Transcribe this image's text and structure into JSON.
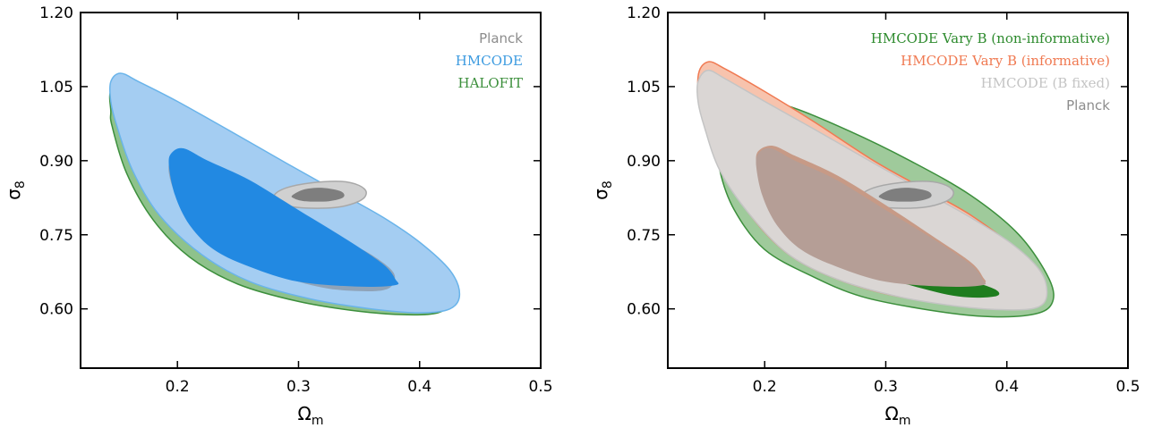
{
  "chart_data": [
    {
      "type": "contour",
      "xlabel": "Ωm",
      "ylabel": "σ8",
      "xlim": [
        0.12,
        0.5
      ],
      "ylim": [
        0.48,
        1.2
      ],
      "xticks": [
        "0.2",
        "0.3",
        "0.4",
        "0.5"
      ],
      "yticks": [
        "1.20",
        "1.05",
        "0.90",
        "0.75",
        "0.60"
      ],
      "legend": {
        "placement": "top-right",
        "entries": [
          {
            "label": "Planck",
            "color": "#8c8c8c"
          },
          {
            "label": "HMCODE",
            "color": "#3d9be0"
          },
          {
            "label": "HALOFIT",
            "color": "#3c8f3c"
          }
        ]
      },
      "series": [
        {
          "name": "HALOFIT",
          "fill": "#8ec28b",
          "stroke": "#3c8f3c",
          "inner": "#8fa3b8",
          "outer": [
            [
              0.145,
              1.04
            ],
            [
              0.157,
              1.045
            ],
            [
              0.185,
              1.02
            ],
            [
              0.22,
              0.975
            ],
            [
              0.26,
              0.92
            ],
            [
              0.3,
              0.865
            ],
            [
              0.34,
              0.8
            ],
            [
              0.38,
              0.74
            ],
            [
              0.41,
              0.685
            ],
            [
              0.427,
              0.645
            ],
            [
              0.426,
              0.612
            ],
            [
              0.415,
              0.592
            ],
            [
              0.39,
              0.588
            ],
            [
              0.35,
              0.595
            ],
            [
              0.3,
              0.615
            ],
            [
              0.25,
              0.65
            ],
            [
              0.21,
              0.705
            ],
            [
              0.18,
              0.78
            ],
            [
              0.158,
              0.875
            ],
            [
              0.146,
              0.97
            ],
            [
              0.145,
              1.0
            ]
          ],
          "inner_path": [
            [
              0.195,
              0.905
            ],
            [
              0.205,
              0.915
            ],
            [
              0.22,
              0.895
            ],
            [
              0.255,
              0.855
            ],
            [
              0.29,
              0.81
            ],
            [
              0.33,
              0.75
            ],
            [
              0.36,
              0.71
            ],
            [
              0.378,
              0.675
            ],
            [
              0.378,
              0.65
            ],
            [
              0.37,
              0.638
            ],
            [
              0.35,
              0.636
            ],
            [
              0.32,
              0.643
            ],
            [
              0.28,
              0.67
            ],
            [
              0.245,
              0.705
            ],
            [
              0.22,
              0.755
            ],
            [
              0.2,
              0.825
            ],
            [
              0.193,
              0.875
            ]
          ]
        },
        {
          "name": "HMCODE",
          "fill": "#a4cdf2",
          "stroke": "#6ab4ea",
          "inner": "#2289e2",
          "outer": [
            [
              0.145,
              1.06
            ],
            [
              0.153,
              1.077
            ],
            [
              0.168,
              1.06
            ],
            [
              0.2,
              1.02
            ],
            [
              0.24,
              0.965
            ],
            [
              0.29,
              0.895
            ],
            [
              0.33,
              0.84
            ],
            [
              0.37,
              0.785
            ],
            [
              0.4,
              0.735
            ],
            [
              0.425,
              0.678
            ],
            [
              0.433,
              0.63
            ],
            [
              0.425,
              0.6
            ],
            [
              0.4,
              0.592
            ],
            [
              0.36,
              0.6
            ],
            [
              0.31,
              0.62
            ],
            [
              0.26,
              0.655
            ],
            [
              0.22,
              0.71
            ],
            [
              0.185,
              0.79
            ],
            [
              0.163,
              0.88
            ],
            [
              0.15,
              0.97
            ],
            [
              0.145,
              1.02
            ]
          ],
          "inner_path": [
            [
              0.195,
              0.915
            ],
            [
              0.205,
              0.925
            ],
            [
              0.225,
              0.9
            ],
            [
              0.26,
              0.86
            ],
            [
              0.3,
              0.8
            ],
            [
              0.34,
              0.74
            ],
            [
              0.37,
              0.69
            ],
            [
              0.38,
              0.66
            ],
            [
              0.38,
              0.648
            ],
            [
              0.35,
              0.645
            ],
            [
              0.3,
              0.655
            ],
            [
              0.26,
              0.685
            ],
            [
              0.23,
              0.72
            ],
            [
              0.21,
              0.77
            ],
            [
              0.198,
              0.83
            ],
            [
              0.193,
              0.89
            ]
          ]
        },
        {
          "name": "Planck",
          "fill": "#d0d0d0",
          "stroke": "#a8a8a8",
          "inner": "#7e7e7e",
          "outer": [
            [
              0.28,
              0.83
            ],
            [
              0.29,
              0.845
            ],
            [
              0.31,
              0.855
            ],
            [
              0.335,
              0.858
            ],
            [
              0.35,
              0.85
            ],
            [
              0.356,
              0.835
            ],
            [
              0.35,
              0.818
            ],
            [
              0.33,
              0.805
            ],
            [
              0.3,
              0.805
            ],
            [
              0.283,
              0.815
            ]
          ],
          "inner_path": [
            [
              0.295,
              0.83
            ],
            [
              0.305,
              0.842
            ],
            [
              0.32,
              0.845
            ],
            [
              0.335,
              0.838
            ],
            [
              0.337,
              0.826
            ],
            [
              0.325,
              0.818
            ],
            [
              0.305,
              0.818
            ],
            [
              0.296,
              0.824
            ]
          ]
        }
      ]
    },
    {
      "type": "contour",
      "xlabel": "Ωm",
      "ylabel": "σ8",
      "xlim": [
        0.12,
        0.5
      ],
      "ylim": [
        0.48,
        1.2
      ],
      "xticks": [
        "0.2",
        "0.3",
        "0.4",
        "0.5"
      ],
      "yticks": [
        "1.20",
        "1.05",
        "0.90",
        "0.75",
        "0.60"
      ],
      "legend": {
        "placement": "top-right",
        "entries": [
          {
            "label": "HMCODE Vary B (non-informative)",
            "color": "#2e8b2e"
          },
          {
            "label": "HMCODE Vary B (informative)",
            "color": "#f07a52"
          },
          {
            "label": "HMCODE (B fixed)",
            "color": "#c4c4c4"
          },
          {
            "label": "Planck",
            "color": "#8c8c8c"
          }
        ]
      },
      "series": [
        {
          "name": "HMCODE Vary B (non-informative)",
          "fill": "#9fca9b",
          "stroke": "#3c8f3c",
          "inner": "#1e7d1e",
          "outer": [
            [
              0.16,
              0.96
            ],
            [
              0.172,
              1.0
            ],
            [
              0.19,
              1.02
            ],
            [
              0.22,
              1.01
            ],
            [
              0.27,
              0.96
            ],
            [
              0.32,
              0.9
            ],
            [
              0.37,
              0.83
            ],
            [
              0.41,
              0.75
            ],
            [
              0.435,
              0.66
            ],
            [
              0.437,
              0.61
            ],
            [
              0.42,
              0.588
            ],
            [
              0.38,
              0.585
            ],
            [
              0.33,
              0.6
            ],
            [
              0.28,
              0.625
            ],
            [
              0.24,
              0.665
            ],
            [
              0.2,
              0.72
            ],
            [
              0.175,
              0.8
            ],
            [
              0.163,
              0.88
            ]
          ],
          "inner_path": [
            [
              0.2,
              0.84
            ],
            [
              0.23,
              0.8
            ],
            [
              0.27,
              0.75
            ],
            [
              0.32,
              0.7
            ],
            [
              0.36,
              0.665
            ],
            [
              0.39,
              0.64
            ],
            [
              0.39,
              0.625
            ],
            [
              0.36,
              0.625
            ],
            [
              0.32,
              0.648
            ],
            [
              0.27,
              0.685
            ],
            [
              0.23,
              0.735
            ],
            [
              0.205,
              0.8
            ]
          ]
        },
        {
          "name": "HMCODE Vary B (informative)",
          "fill": "#f7c3ad",
          "stroke": "#f07a52",
          "inner": "#c79a86",
          "outer": [
            [
              0.145,
              1.07
            ],
            [
              0.153,
              1.1
            ],
            [
              0.168,
              1.085
            ],
            [
              0.2,
              1.04
            ],
            [
              0.24,
              0.98
            ],
            [
              0.29,
              0.9
            ],
            [
              0.33,
              0.845
            ],
            [
              0.37,
              0.79
            ],
            [
              0.405,
              0.725
            ],
            [
              0.428,
              0.655
            ],
            [
              0.425,
              0.615
            ],
            [
              0.4,
              0.602
            ],
            [
              0.36,
              0.608
            ],
            [
              0.31,
              0.625
            ],
            [
              0.26,
              0.66
            ],
            [
              0.22,
              0.71
            ],
            [
              0.188,
              0.79
            ],
            [
              0.163,
              0.89
            ],
            [
              0.148,
              0.99
            ]
          ],
          "inner_path": [
            [
              0.195,
              0.92
            ],
            [
              0.207,
              0.93
            ],
            [
              0.225,
              0.91
            ],
            [
              0.26,
              0.87
            ],
            [
              0.3,
              0.81
            ],
            [
              0.34,
              0.745
            ],
            [
              0.37,
              0.695
            ],
            [
              0.38,
              0.665
            ],
            [
              0.38,
              0.652
            ],
            [
              0.35,
              0.65
            ],
            [
              0.3,
              0.665
            ],
            [
              0.26,
              0.695
            ],
            [
              0.23,
              0.735
            ],
            [
              0.21,
              0.79
            ],
            [
              0.197,
              0.855
            ],
            [
              0.193,
              0.895
            ]
          ]
        },
        {
          "name": "HMCODE (B fixed)",
          "fill": "#dad6d4",
          "stroke": "#c4c4c4",
          "inner": "#b59e96",
          "outer": [
            [
              0.145,
              1.06
            ],
            [
              0.153,
              1.083
            ],
            [
              0.168,
              1.065
            ],
            [
              0.2,
              1.02
            ],
            [
              0.24,
              0.965
            ],
            [
              0.29,
              0.895
            ],
            [
              0.33,
              0.84
            ],
            [
              0.37,
              0.785
            ],
            [
              0.405,
              0.73
            ],
            [
              0.428,
              0.675
            ],
            [
              0.433,
              0.628
            ],
            [
              0.425,
              0.603
            ],
            [
              0.4,
              0.598
            ],
            [
              0.36,
              0.605
            ],
            [
              0.31,
              0.625
            ],
            [
              0.26,
              0.66
            ],
            [
              0.22,
              0.71
            ],
            [
              0.188,
              0.79
            ],
            [
              0.163,
              0.88
            ],
            [
              0.15,
              0.97
            ],
            [
              0.145,
              1.02
            ]
          ],
          "inner_path": [
            [
              0.195,
              0.915
            ],
            [
              0.205,
              0.925
            ],
            [
              0.225,
              0.9
            ],
            [
              0.26,
              0.86
            ],
            [
              0.3,
              0.8
            ],
            [
              0.34,
              0.74
            ],
            [
              0.37,
              0.69
            ],
            [
              0.38,
              0.66
            ],
            [
              0.38,
              0.648
            ],
            [
              0.35,
              0.645
            ],
            [
              0.3,
              0.655
            ],
            [
              0.26,
              0.685
            ],
            [
              0.23,
              0.72
            ],
            [
              0.21,
              0.77
            ],
            [
              0.198,
              0.83
            ],
            [
              0.193,
              0.89
            ]
          ]
        },
        {
          "name": "Planck",
          "fill": "#d0d0d0",
          "stroke": "#a8a8a8",
          "inner": "#7e7e7e",
          "outer": [
            [
              0.28,
              0.83
            ],
            [
              0.29,
              0.845
            ],
            [
              0.31,
              0.855
            ],
            [
              0.335,
              0.858
            ],
            [
              0.35,
              0.85
            ],
            [
              0.356,
              0.835
            ],
            [
              0.35,
              0.818
            ],
            [
              0.33,
              0.805
            ],
            [
              0.3,
              0.805
            ],
            [
              0.283,
              0.815
            ]
          ],
          "inner_path": [
            [
              0.295,
              0.83
            ],
            [
              0.305,
              0.842
            ],
            [
              0.32,
              0.845
            ],
            [
              0.335,
              0.838
            ],
            [
              0.337,
              0.826
            ],
            [
              0.325,
              0.818
            ],
            [
              0.305,
              0.818
            ],
            [
              0.296,
              0.824
            ]
          ]
        }
      ]
    }
  ]
}
